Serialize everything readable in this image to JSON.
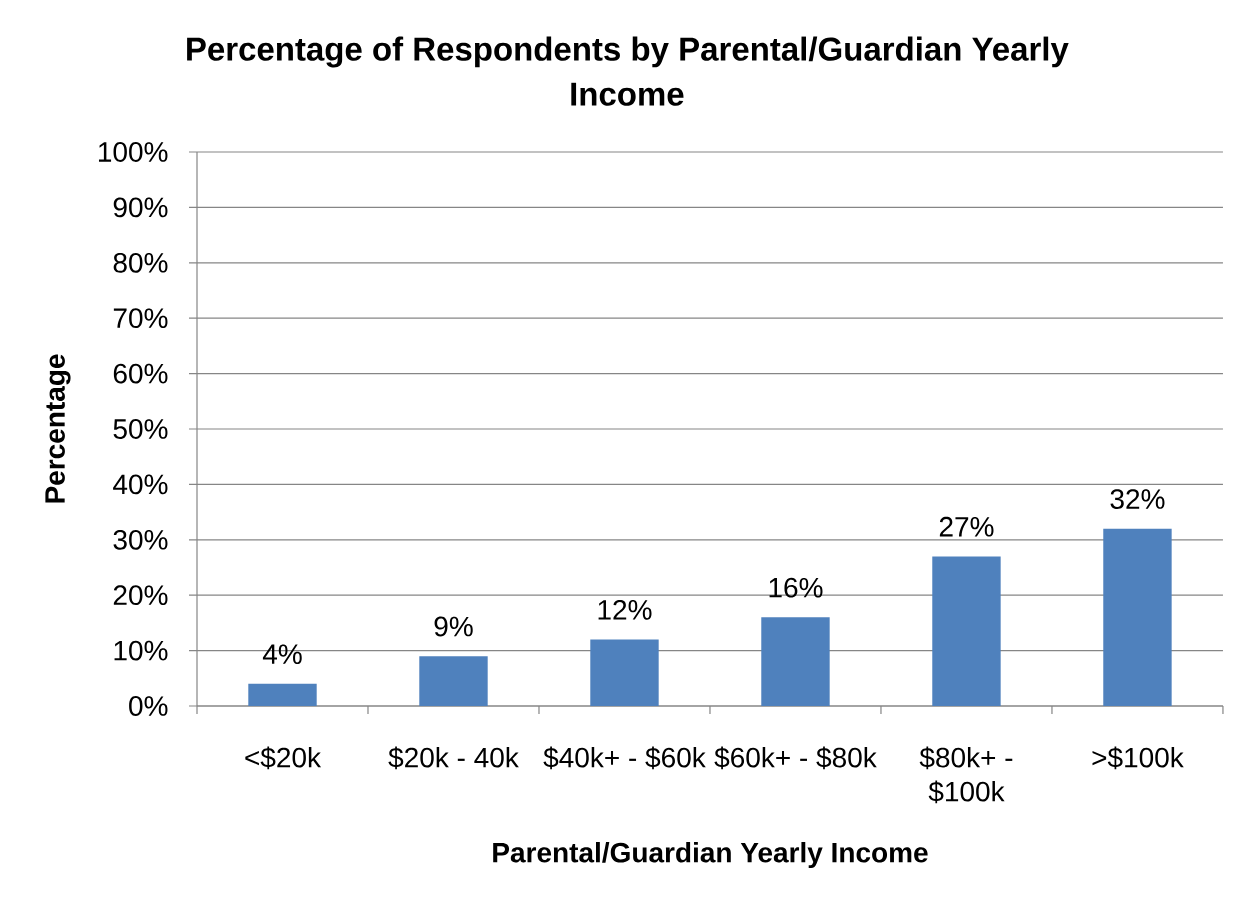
{
  "chart_data": {
    "type": "bar",
    "title": "Percentage of Respondents by Parental/Guardian Yearly Income",
    "xlabel": "Parental/Guardian Yearly Income",
    "ylabel": "Percentage",
    "categories": [
      "<$20k",
      "$20k - 40k",
      "$40k+ - $60k",
      "$60k+ - $80k",
      "$80k+ - $100k",
      ">$100k"
    ],
    "values": [
      4,
      9,
      12,
      16,
      27,
      32
    ],
    "value_labels": [
      "4%",
      "9%",
      "12%",
      "16%",
      "27%",
      "32%"
    ],
    "color": "#4f81bd",
    "ylim": [
      0,
      100
    ],
    "yticks": [
      {
        "value": 0,
        "label": "0%"
      },
      {
        "value": 10,
        "label": "10%"
      },
      {
        "value": 20,
        "label": "20%"
      },
      {
        "value": 30,
        "label": "30%"
      },
      {
        "value": 40,
        "label": "40%"
      },
      {
        "value": 50,
        "label": "50%"
      },
      {
        "value": 60,
        "label": "60%"
      },
      {
        "value": 70,
        "label": "70%"
      },
      {
        "value": 80,
        "label": "80%"
      },
      {
        "value": 90,
        "label": "90%"
      },
      {
        "value": 100,
        "label": "100%"
      }
    ],
    "grid": "y"
  }
}
